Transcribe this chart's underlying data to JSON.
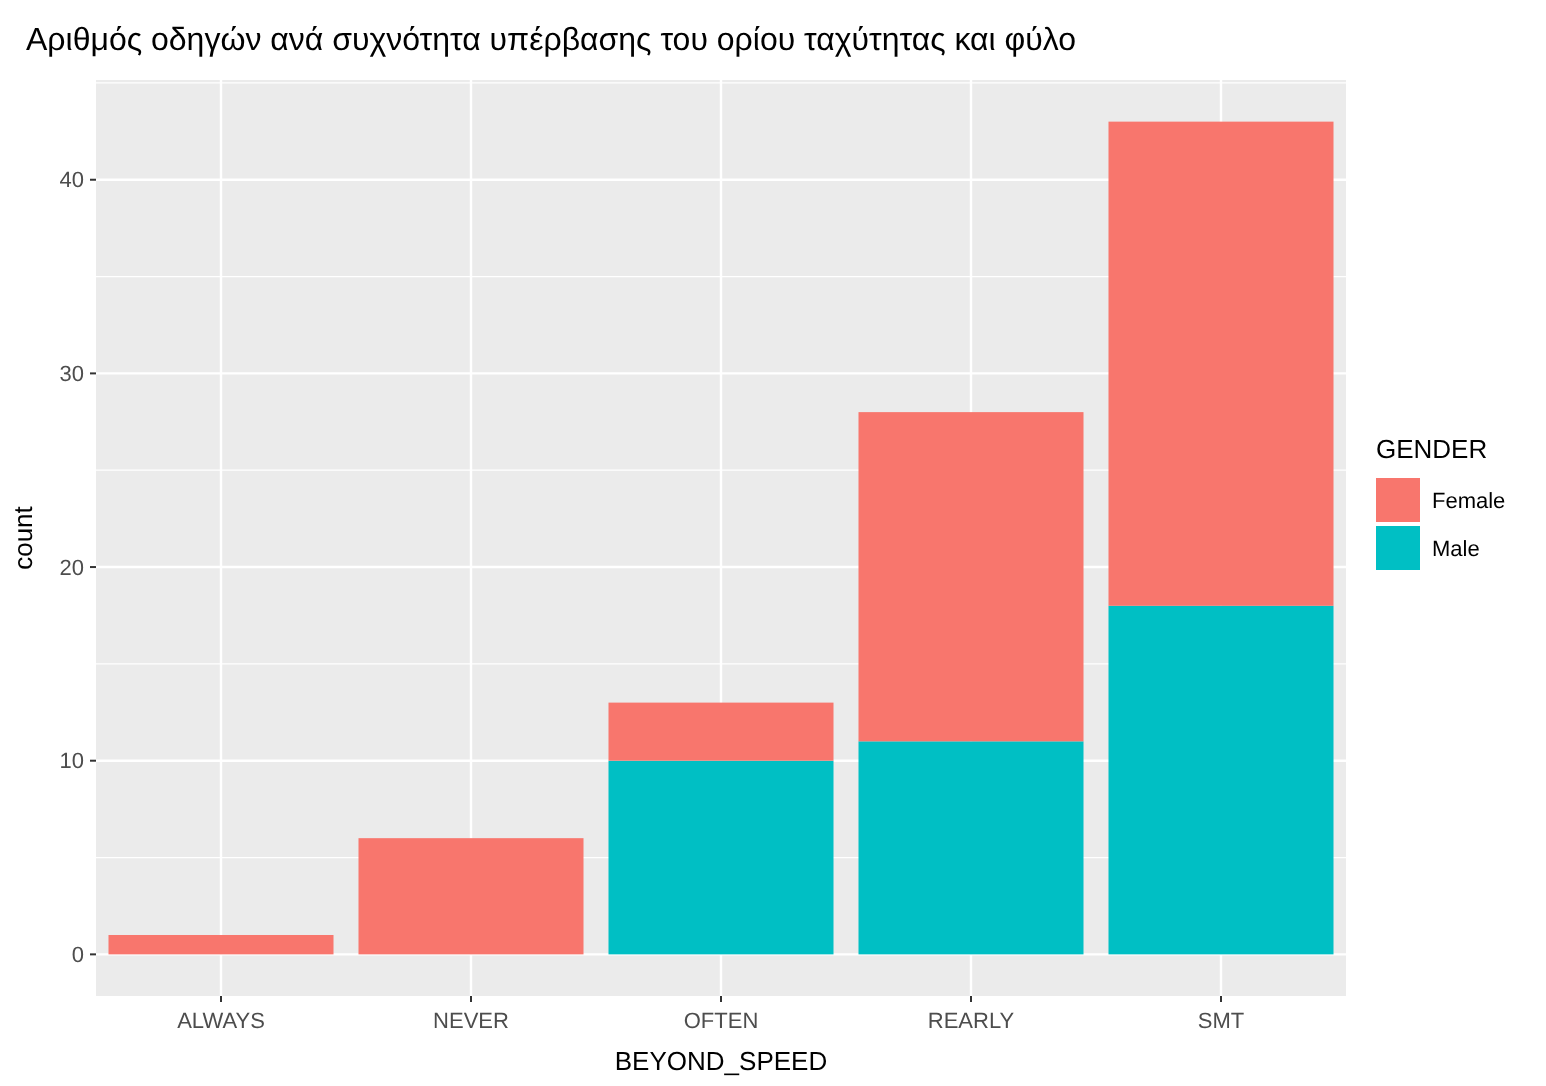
{
  "chart_data": {
    "type": "bar",
    "title": "Αριθμός οδηγών ανά συχνότητα υπέρβασης του ορίου ταχύτητας και φύλο",
    "xlabel": "BEYOND_SPEED",
    "ylabel": "count",
    "legend_title": "GENDER",
    "categories": [
      "ALWAYS",
      "NEVER",
      "OFTEN",
      "REARLY",
      "SMT"
    ],
    "series": [
      {
        "name": "Male",
        "color": "#00bfc4",
        "values": [
          null,
          null,
          10,
          11,
          18
        ]
      },
      {
        "name": "Female",
        "color": "#f8766d",
        "values": [
          1,
          6,
          3,
          17,
          25
        ]
      }
    ],
    "stacked": true,
    "ylim": [
      -2.15,
      45.15
    ],
    "yticks": [
      0,
      10,
      20,
      30,
      40
    ],
    "grid": true,
    "legend": "right"
  }
}
